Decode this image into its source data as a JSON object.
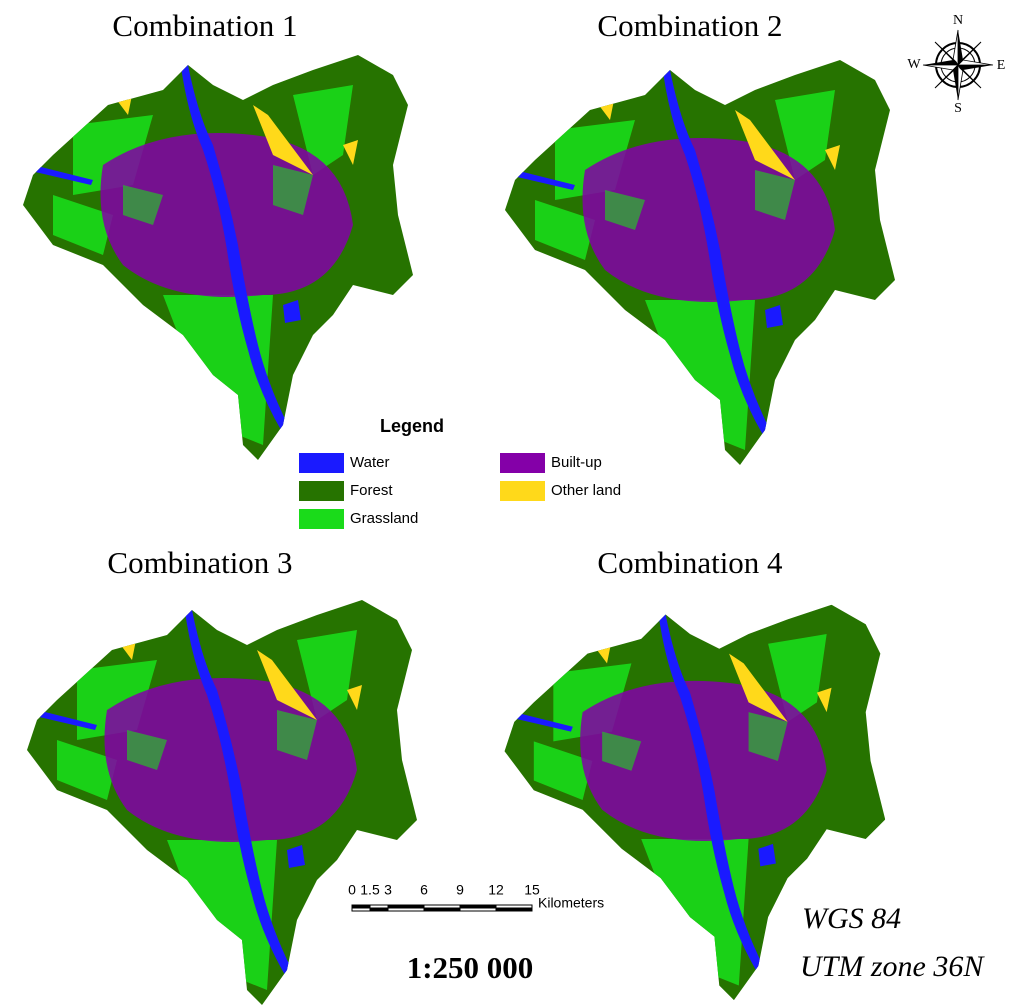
{
  "panels": [
    {
      "title": "Combination 1"
    },
    {
      "title": "Combination 2"
    },
    {
      "title": "Combination 3"
    },
    {
      "title": "Combination 4"
    }
  ],
  "legend": {
    "title": "Legend",
    "items": [
      {
        "label": "Water",
        "color": "#1a1aff"
      },
      {
        "label": "Forest",
        "color": "#267300"
      },
      {
        "label": "Grassland",
        "color": "#1adb1a"
      },
      {
        "label": "Built-up",
        "color": "#8400a8"
      },
      {
        "label": "Other land",
        "color": "#ffd91a"
      }
    ]
  },
  "compass": {
    "north": "N",
    "south": "S",
    "west": "W",
    "east": "E"
  },
  "scale_bar": {
    "ticks": [
      0,
      1.5,
      3,
      6,
      9,
      12,
      15
    ],
    "unit": "Kilometers",
    "ratio": "1:250 000"
  },
  "projection": {
    "datum": "WGS 84",
    "zone": "UTM zone 36N"
  }
}
